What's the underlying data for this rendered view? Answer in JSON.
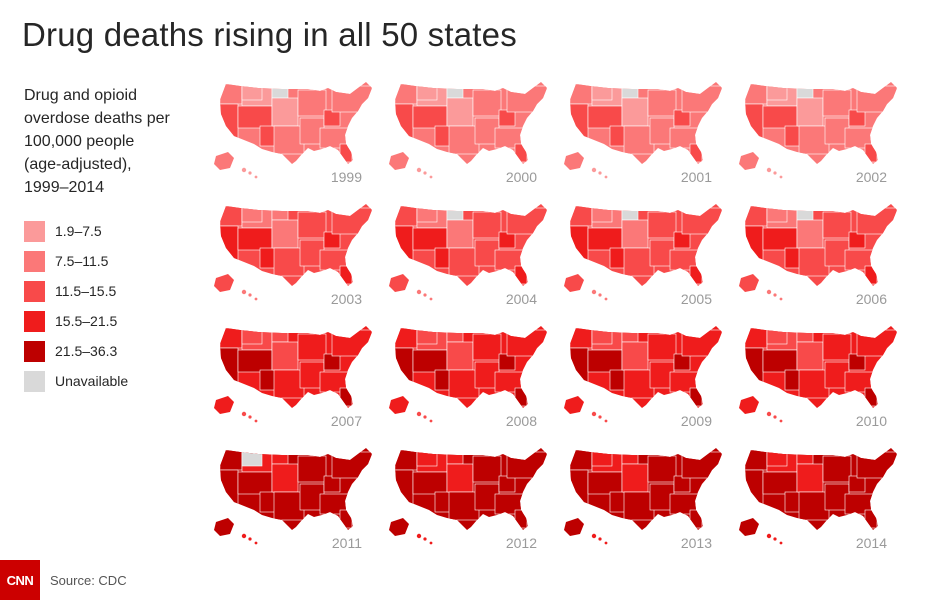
{
  "title": "Drug deaths rising in all 50 states",
  "legend": {
    "title": "Drug and opioid\noverdose deaths per\n100,000 people\n(age-adjusted),\n1999–2014",
    "items": [
      {
        "label": "1.9–7.5",
        "color": "#fb9a9a"
      },
      {
        "label": "7.5–11.5",
        "color": "#fb7878"
      },
      {
        "label": "11.5–15.5",
        "color": "#f84a4a"
      },
      {
        "label": "15.5–21.5",
        "color": "#ef1c1c"
      },
      {
        "label": "21.5–36.3",
        "color": "#bd0000"
      },
      {
        "label": "Unavailable",
        "color": "#d9d9d9"
      }
    ]
  },
  "maps": [
    {
      "year": "1999",
      "level": 1,
      "unavailable": [
        "north-dakota"
      ]
    },
    {
      "year": "2000",
      "level": 1,
      "unavailable": [
        "north-dakota"
      ]
    },
    {
      "year": "2001",
      "level": 1,
      "unavailable": [
        "north-dakota"
      ]
    },
    {
      "year": "2002",
      "level": 1,
      "unavailable": [
        "north-dakota"
      ]
    },
    {
      "year": "2003",
      "level": 2,
      "unavailable": []
    },
    {
      "year": "2004",
      "level": 2,
      "unavailable": [
        "north-dakota"
      ]
    },
    {
      "year": "2005",
      "level": 2,
      "unavailable": [
        "north-dakota"
      ]
    },
    {
      "year": "2006",
      "level": 2,
      "unavailable": [
        "north-dakota"
      ]
    },
    {
      "year": "2007",
      "level": 3,
      "unavailable": []
    },
    {
      "year": "2008",
      "level": 3,
      "unavailable": []
    },
    {
      "year": "2009",
      "level": 3,
      "unavailable": []
    },
    {
      "year": "2010",
      "level": 3,
      "unavailable": []
    },
    {
      "year": "2011",
      "level": 4,
      "unavailable": [
        "montana"
      ]
    },
    {
      "year": "2012",
      "level": 4,
      "unavailable": []
    },
    {
      "year": "2013",
      "level": 4,
      "unavailable": []
    },
    {
      "year": "2014",
      "level": 4,
      "unavailable": []
    }
  ],
  "footer": {
    "logo_text": "CNN",
    "source": "Source: CDC",
    "brand_color": "#cc0000"
  }
}
